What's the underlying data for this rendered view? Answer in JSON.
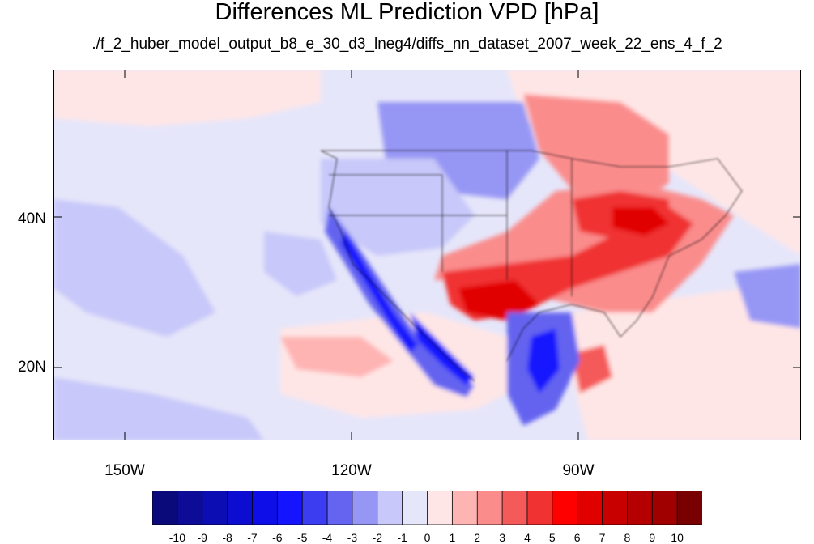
{
  "title": "Differences ML Prediction VPD [hPa]",
  "subtitle": "./f_2_huber_model_output_b8_e_30_d3_lneg4/diffs_nn_dataset_2007_week_22_ens_4_f_2",
  "y_axis": {
    "labels": [
      "40N",
      "20N"
    ]
  },
  "x_axis": {
    "labels": [
      "150W",
      "120W",
      "90W"
    ]
  },
  "colorbar": {
    "labels": [
      "-10",
      "-9",
      "-8",
      "-7",
      "-6",
      "-5",
      "-4",
      "-3",
      "-2",
      "-1",
      "0",
      "1",
      "2",
      "3",
      "4",
      "5",
      "6",
      "7",
      "8",
      "9",
      "10"
    ],
    "colors": [
      "#0a0a7a",
      "#0c0c96",
      "#0d0db4",
      "#0d0dd2",
      "#0e0ee8",
      "#1414ff",
      "#3c3cf0",
      "#6464f0",
      "#9696f5",
      "#c8c8fa",
      "#e6e6fa",
      "#ffe6e6",
      "#ffb4b4",
      "#fa8c8c",
      "#f55a5a",
      "#f03232",
      "#ff0000",
      "#e10000",
      "#c80000",
      "#b40000",
      "#a00000",
      "#780000"
    ]
  },
  "colors": {
    "background_field": "#e6e6fa",
    "coast_lines": "#000000"
  }
}
